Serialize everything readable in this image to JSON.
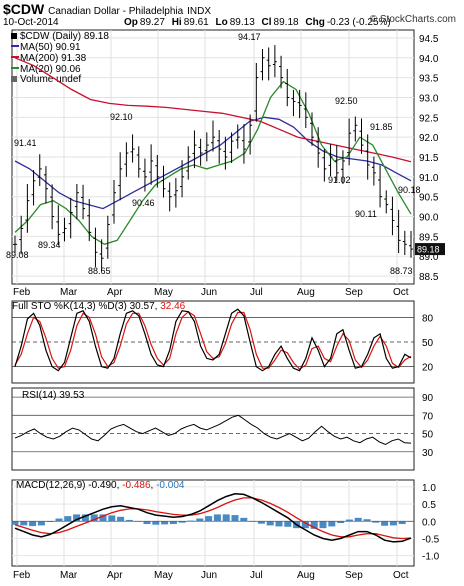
{
  "header": {
    "symbol": "$CDW",
    "name": "Canadian Dollar - Philadelphia",
    "exchange": "INDX",
    "date": "10-Oct-2014",
    "quote_labels": [
      "Op",
      "Hi",
      "Lo",
      "Cl",
      "Chg"
    ],
    "quote_values": [
      "89.27",
      "89.61",
      "89.13",
      "89.18",
      "-0.23 (-0.25%)"
    ],
    "watermark": "© StockCharts.com"
  },
  "colors": {
    "price": "#000000",
    "ma50": "#2d2d9f",
    "ma200": "#c8102e",
    "ma20": "#2a8a2a",
    "stoch_k": "#000000",
    "stoch_d": "#d9130f",
    "macd_line": "#000000",
    "signal_line": "#d9130f",
    "histogram": "#2a76b8",
    "rsi": "#000000"
  },
  "chart_data": [
    {
      "type": "ohlc",
      "title": "$CDW (Daily) 89.18",
      "legend": [
        {
          "label": "$CDW (Daily) 89.18",
          "color": "#000000"
        },
        {
          "label": "MA(50) 90.91",
          "color": "#2d2d9f"
        },
        {
          "label": "MA(200) 91.38",
          "color": "#c8102e"
        },
        {
          "label": "MA(20) 90.06",
          "color": "#2a8a2a"
        },
        {
          "label": "Volume undef",
          "color": "#000000"
        }
      ],
      "x_ticks": [
        "Feb",
        "Mar",
        "Apr",
        "May",
        "Jun",
        "Jul",
        "Aug",
        "Sep",
        "Oct"
      ],
      "y_ticks": [
        "88.5",
        "89.0",
        "89.5",
        "90.0",
        "90.5",
        "91.0",
        "91.5",
        "92.0",
        "92.5",
        "93.0",
        "93.5",
        "94.0",
        "94.5"
      ],
      "ylim": [
        88.3,
        94.7
      ],
      "close": [
        89.3,
        89.7,
        90.4,
        90.9,
        91.2,
        90.7,
        90.0,
        89.55,
        89.7,
        90.1,
        90.6,
        90.2,
        89.6,
        89.1,
        88.95,
        89.8,
        90.6,
        91.2,
        91.6,
        91.7,
        91.2,
        91.0,
        91.4,
        91.0,
        90.7,
        90.5,
        90.65,
        91.0,
        91.5,
        91.8,
        91.6,
        91.8,
        92.0,
        91.7,
        91.5,
        91.9,
        92.0,
        91.7,
        92.3,
        93.5,
        94.0,
        93.8,
        93.9,
        93.5,
        93.0,
        92.9,
        92.8,
        92.5,
        92.0,
        91.6,
        91.2,
        91.5,
        91.1,
        91.4,
        92.1,
        92.3,
        91.8,
        91.3,
        91.1,
        90.5,
        90.3,
        89.9,
        89.4,
        89.3,
        89.18
      ],
      "series": [
        {
          "name": "MA(50)",
          "values": [
            91.4,
            91.2,
            90.9,
            90.6,
            90.4,
            90.3,
            90.2,
            90.4,
            90.6,
            90.8,
            91.0,
            91.2,
            91.4,
            91.6,
            91.8,
            92.1,
            92.4,
            92.5,
            92.45,
            92.25,
            91.9,
            91.65,
            91.5,
            91.45,
            91.4,
            91.3,
            91.1,
            90.9
          ]
        },
        {
          "name": "MA(200)",
          "values": [
            94.0,
            93.8,
            93.5,
            93.2,
            92.95,
            92.85,
            92.8,
            92.78,
            92.75,
            92.7,
            92.65,
            92.6,
            92.5,
            92.4,
            92.2,
            92.0,
            91.9,
            91.8,
            91.7,
            91.6,
            91.5,
            91.38
          ]
        },
        {
          "name": "MA(20)",
          "values": [
            89.6,
            89.9,
            90.3,
            90.4,
            90.2,
            89.9,
            89.5,
            89.3,
            89.4,
            89.9,
            90.4,
            90.8,
            91.0,
            91.2,
            91.3,
            91.2,
            91.3,
            91.4,
            91.6,
            92.2,
            93.0,
            93.4,
            93.2,
            92.6,
            91.8,
            91.4,
            91.5,
            92.0,
            91.8,
            91.2,
            90.6,
            90.06
          ]
        }
      ],
      "annotations": [
        "89.08",
        "89.34",
        "91.41",
        "88.65",
        "92.10",
        "90.46",
        "94.17",
        "92.50",
        "91.85",
        "91.02",
        "90.11",
        "90.18",
        "88.73"
      ]
    },
    {
      "type": "line",
      "title": "Full STO %K(14,3) %D(3) 30.57, 32.46",
      "legend_prefix": "Full STO %K(14,3) %D(3) 30.57, ",
      "legend_value": "32.46",
      "y_ticks": [
        "20",
        "50",
        "80"
      ],
      "ylim": [
        0,
        100
      ],
      "series": [
        {
          "name": "%K",
          "values": [
            20,
            45,
            78,
            85,
            70,
            40,
            20,
            15,
            25,
            55,
            85,
            88,
            75,
            45,
            20,
            18,
            30,
            60,
            85,
            88,
            82,
            60,
            35,
            22,
            20,
            40,
            75,
            88,
            87,
            75,
            45,
            30,
            28,
            35,
            60,
            85,
            90,
            82,
            50,
            20,
            15,
            20,
            35,
            45,
            30,
            18,
            15,
            30,
            55,
            40,
            20,
            30,
            60,
            65,
            40,
            18,
            20,
            35,
            55,
            60,
            30,
            18,
            20,
            35,
            30.57
          ]
        },
        {
          "name": "%D",
          "values": [
            22,
            35,
            60,
            80,
            75,
            55,
            30,
            18,
            20,
            40,
            70,
            85,
            80,
            60,
            32,
            20,
            25,
            45,
            72,
            85,
            85,
            70,
            47,
            30,
            22,
            30,
            60,
            80,
            87,
            82,
            60,
            38,
            30,
            32,
            48,
            72,
            86,
            86,
            65,
            35,
            18,
            18,
            28,
            40,
            37,
            25,
            17,
            22,
            42,
            45,
            30,
            26,
            45,
            60,
            52,
            28,
            19,
            28,
            45,
            57,
            45,
            24,
            19,
            28,
            32.46
          ]
        }
      ]
    },
    {
      "type": "line",
      "title": "RSI(14) 39.53",
      "y_ticks": [
        "30",
        "50",
        "70",
        "90"
      ],
      "ylim": [
        10,
        100
      ],
      "series": [
        {
          "name": "RSI(14)",
          "values": [
            45,
            48,
            52,
            55,
            50,
            46,
            44,
            47,
            52,
            56,
            54,
            49,
            44,
            42,
            48,
            55,
            58,
            60,
            56,
            52,
            50,
            53,
            56,
            52,
            48,
            50,
            55,
            58,
            60,
            56,
            54,
            57,
            60,
            64,
            68,
            70,
            65,
            60,
            56,
            50,
            46,
            44,
            47,
            50,
            46,
            42,
            45,
            52,
            58,
            52,
            47,
            44,
            46,
            42,
            40,
            44,
            46,
            41,
            38,
            42,
            44,
            40,
            39.53
          ]
        }
      ]
    },
    {
      "type": "line",
      "title": "MACD(12,26,9) -0.490, -0.486, -0.004",
      "legend_prefix": "MACD(12,26,9) -0.490, ",
      "legend_signal": "-0.486",
      "legend_sep": ", ",
      "legend_hist": "-0.004",
      "y_ticks": [
        "-1.0",
        "-0.5",
        "0.0",
        "0.5",
        "1.0"
      ],
      "ylim": [
        -1.3,
        1.2
      ],
      "series": [
        {
          "name": "MACD",
          "values": [
            -0.2,
            -0.3,
            -0.4,
            -0.45,
            -0.38,
            -0.25,
            -0.1,
            0.05,
            0.15,
            0.25,
            0.35,
            0.42,
            0.45,
            0.4,
            0.35,
            0.25,
            0.18,
            0.15,
            0.12,
            0.14,
            0.2,
            0.3,
            0.45,
            0.6,
            0.72,
            0.8,
            0.78,
            0.68,
            0.55,
            0.4,
            0.25,
            0.1,
            -0.1,
            -0.25,
            -0.4,
            -0.5,
            -0.55,
            -0.5,
            -0.4,
            -0.3,
            -0.3,
            -0.4,
            -0.55,
            -0.6,
            -0.58,
            -0.49
          ]
        },
        {
          "name": "Signal",
          "values": [
            -0.1,
            -0.18,
            -0.26,
            -0.33,
            -0.36,
            -0.33,
            -0.25,
            -0.15,
            -0.05,
            0.05,
            0.15,
            0.25,
            0.32,
            0.36,
            0.36,
            0.33,
            0.28,
            0.24,
            0.2,
            0.18,
            0.18,
            0.22,
            0.3,
            0.4,
            0.52,
            0.62,
            0.68,
            0.68,
            0.62,
            0.52,
            0.4,
            0.26,
            0.1,
            -0.05,
            -0.18,
            -0.3,
            -0.4,
            -0.45,
            -0.45,
            -0.4,
            -0.36,
            -0.36,
            -0.42,
            -0.48,
            -0.5,
            -0.486
          ]
        },
        {
          "name": "Histogram",
          "values": [
            -0.1,
            -0.12,
            -0.14,
            -0.12,
            -0.02,
            0.08,
            0.15,
            0.2,
            0.2,
            0.2,
            0.2,
            0.17,
            0.13,
            0.04,
            -0.01,
            -0.08,
            -0.1,
            -0.09,
            -0.08,
            -0.04,
            0.02,
            0.08,
            0.15,
            0.2,
            0.2,
            0.18,
            0.1,
            0.0,
            -0.07,
            -0.12,
            -0.15,
            -0.16,
            -0.2,
            -0.2,
            -0.22,
            -0.2,
            -0.15,
            -0.05,
            0.05,
            0.1,
            0.06,
            -0.04,
            -0.13,
            -0.12,
            -0.08,
            -0.004
          ]
        }
      ]
    }
  ]
}
